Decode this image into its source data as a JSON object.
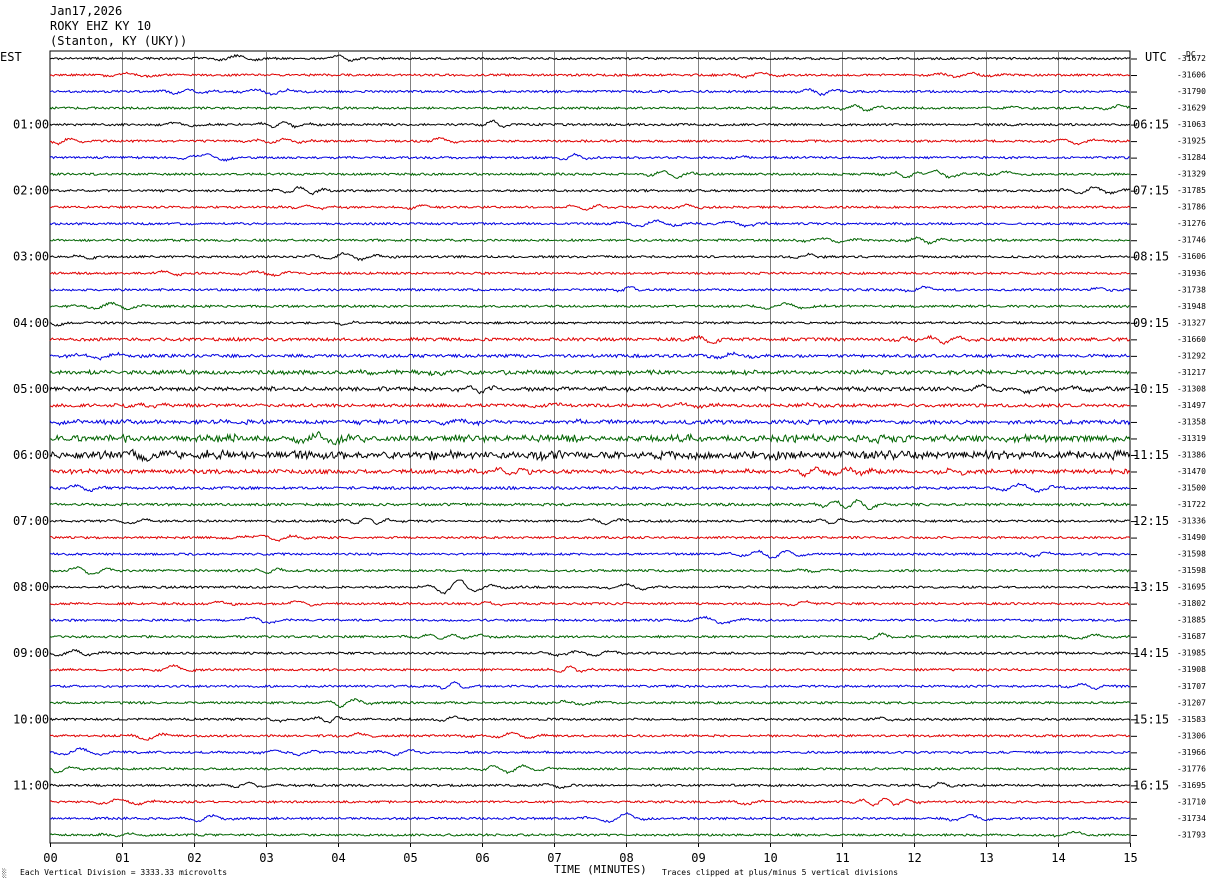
{
  "header": {
    "date": "Jan17,2026",
    "station": "ROKY EHZ KY 10",
    "location": "(Stanton, KY (UKY))"
  },
  "footer": {
    "scale": "Each Vertical Division = 3333.33 microvolts",
    "clip": "Traces clipped at plus/minus 5 vertical divisions",
    "mark": "░"
  },
  "chart_data": {
    "type": "line",
    "title": "ROKY EHZ KY 10",
    "xlabel": "TIME (MINUTES)",
    "xlim": [
      0,
      15
    ],
    "x_ticks": [
      "00",
      "01",
      "02",
      "03",
      "04",
      "05",
      "06",
      "07",
      "08",
      "09",
      "10",
      "11",
      "12",
      "13",
      "14",
      "15"
    ],
    "left_axis_label": "EST",
    "right_axis_label": "UTC",
    "dc_label": "DC",
    "traces_per_hour": 4,
    "minutes_per_trace": 15,
    "trace_colors": [
      "#000000",
      "#e00000",
      "#0000e0",
      "#006400"
    ],
    "left_hour_labels": [
      "01:00",
      "02:00",
      "03:00",
      "04:00",
      "05:00",
      "06:00",
      "07:00",
      "08:00",
      "09:00",
      "10:00",
      "11:00"
    ],
    "right_hour_labels": [
      "06:15",
      "07:15",
      "08:15",
      "09:15",
      "10:15",
      "11:15",
      "12:15",
      "13:15",
      "14:15",
      "15:15",
      "16:15"
    ],
    "label_first_trace": 4,
    "dc_offsets": [
      "-31672",
      "-31606",
      "-31790",
      "-31629",
      "-31063",
      "-31925",
      "-31284",
      "-31329",
      "-31785",
      "-31786",
      "-31276",
      "-31746",
      "-31606",
      "-31936",
      "-31738",
      "-31948",
      "-31327",
      "-31660",
      "-31292",
      "-31217",
      "-31308",
      "-31497",
      "-31358",
      "-31319",
      "-31386",
      "-31470",
      "-31500",
      "-31722",
      "-31336",
      "-31490",
      "-31598",
      "-31598",
      "-31695",
      "-31802",
      "-31885",
      "-31687",
      "-31985",
      "-31908",
      "-31707",
      "-31207",
      "-31583",
      "-31306",
      "-31966",
      "-31776",
      "-31695",
      "-31710",
      "-31734",
      "-31793"
    ],
    "trace_activity": [
      1,
      1,
      1,
      1,
      1,
      1,
      1,
      1,
      1,
      1,
      1,
      1,
      1,
      1,
      1,
      1,
      1,
      1.4,
      1.4,
      1.6,
      1.6,
      1.4,
      1.7,
      2.4,
      2.8,
      1.7,
      1.2,
      1.2,
      1,
      1,
      1,
      1,
      1,
      1,
      1,
      1,
      1,
      1,
      1,
      1,
      1,
      1,
      1,
      1,
      1,
      1,
      1,
      1
    ]
  }
}
